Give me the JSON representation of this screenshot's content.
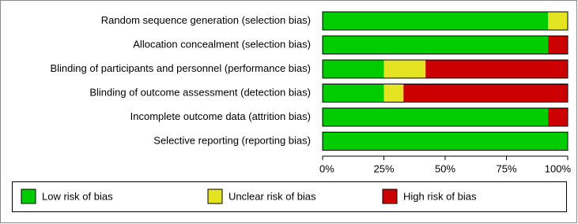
{
  "chart_data": {
    "type": "stacked-bar-horizontal",
    "categories": [
      "Random sequence generation (selection bias)",
      "Allocation concealment (selection bias)",
      "Blinding of participants and personnel (performance bias)",
      "Blinding of outcome assessment (detection bias)",
      "Incomplete outcome data (attrition bias)",
      "Selective reporting (reporting bias)"
    ],
    "series": [
      {
        "name": "Low risk of bias",
        "color": "#00cc00",
        "values": [
          92,
          92,
          25,
          25,
          92,
          100
        ]
      },
      {
        "name": "Unclear risk of bias",
        "color": "#e4e422",
        "values": [
          8,
          0,
          17,
          8,
          0,
          0
        ]
      },
      {
        "name": "High risk of bias",
        "color": "#cc0000",
        "values": [
          0,
          8,
          58,
          67,
          8,
          0
        ]
      }
    ],
    "xlim": [
      0,
      100
    ],
    "xticks": [
      {
        "value": 0,
        "label": "0%"
      },
      {
        "value": 25,
        "label": "25%"
      },
      {
        "value": 50,
        "label": "50%"
      },
      {
        "value": 75,
        "label": "75%"
      },
      {
        "value": 100,
        "label": "100%"
      }
    ]
  }
}
